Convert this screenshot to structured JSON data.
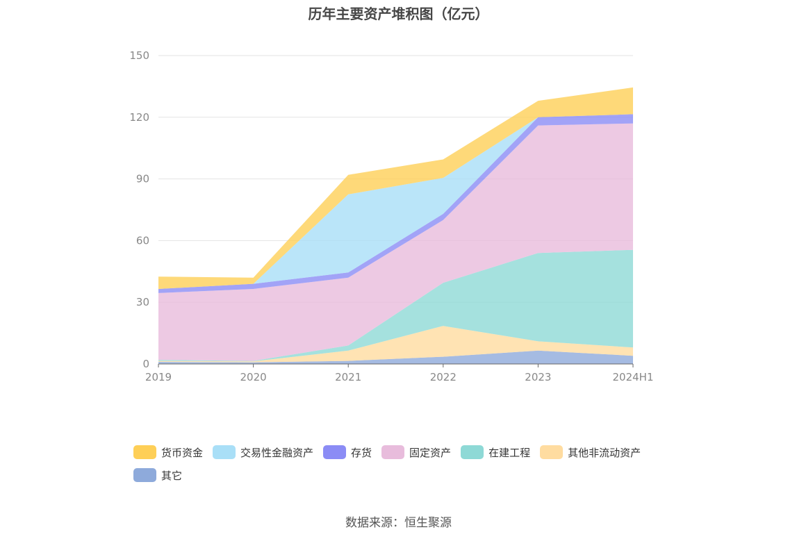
{
  "title": "历年主要资产堆积图（亿元）",
  "source": "数据来源：恒生聚源",
  "chart_data": {
    "type": "area",
    "stacked": true,
    "categories": [
      "2019",
      "2020",
      "2021",
      "2022",
      "2023",
      "2024H1"
    ],
    "ylim": [
      0,
      150
    ],
    "yticks": [
      0,
      30,
      60,
      90,
      120,
      150
    ],
    "grid": true,
    "legend_position": "bottom",
    "series": [
      {
        "name": "其它",
        "color": "#8eaadb",
        "values": [
          1.0,
          0.8,
          1.5,
          3.5,
          6.5,
          4.0
        ]
      },
      {
        "name": "其他非流动资产",
        "color": "#ffdca0",
        "values": [
          0.5,
          0.5,
          5.0,
          15.0,
          4.5,
          4.0
        ]
      },
      {
        "name": "在建工程",
        "color": "#8ed9d6",
        "values": [
          0.5,
          0.2,
          2.5,
          21.0,
          43.0,
          47.5
        ]
      },
      {
        "name": "固定资产",
        "color": "#e8bcdc",
        "values": [
          32.5,
          35.0,
          33.0,
          30.5,
          62.0,
          61.5
        ]
      },
      {
        "name": "存货",
        "color": "#8b8cf5",
        "values": [
          2.0,
          2.5,
          2.5,
          3.0,
          4.0,
          4.5
        ]
      },
      {
        "name": "交易性金融资产",
        "color": "#a9dff7",
        "values": [
          0,
          0,
          38.0,
          17.5,
          0,
          0
        ]
      },
      {
        "name": "货币资金",
        "color": "#fecf57",
        "values": [
          6.0,
          3.0,
          9.5,
          9.0,
          8.0,
          13.0
        ]
      }
    ]
  },
  "legend_order": [
    "货币资金",
    "交易性金融资产",
    "存货",
    "固定资产",
    "在建工程",
    "其他非流动资产",
    "其它"
  ]
}
